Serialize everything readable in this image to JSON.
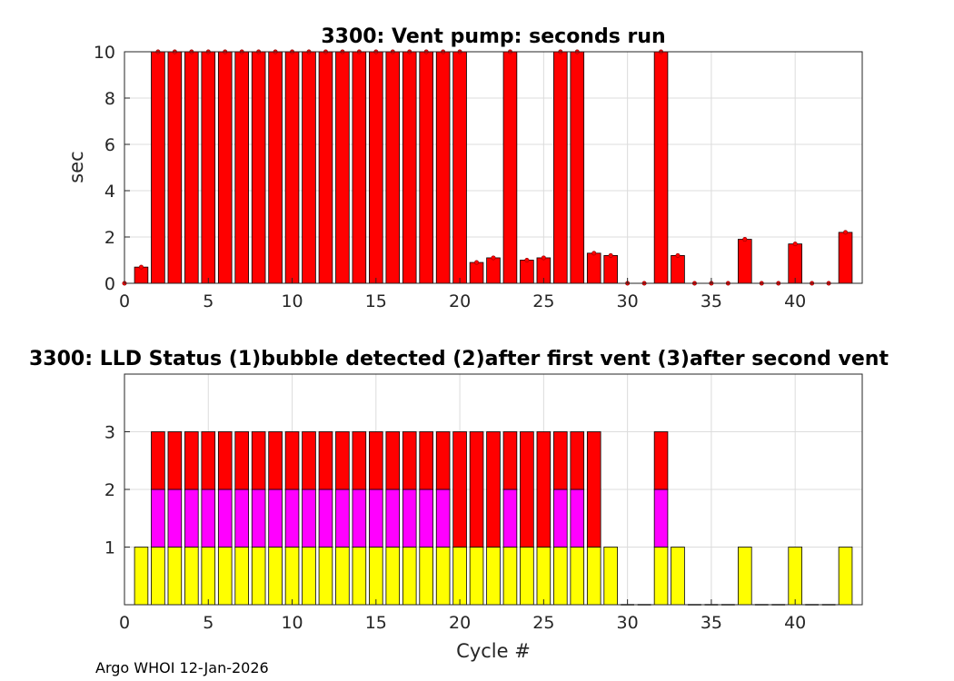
{
  "chart_data": [
    {
      "type": "bar",
      "title": "3300: Vent pump: seconds run",
      "xlabel": "",
      "ylabel": "sec",
      "xlim": [
        0,
        44
      ],
      "ylim": [
        0,
        10
      ],
      "xticks": [
        0,
        5,
        10,
        15,
        20,
        25,
        30,
        35,
        40
      ],
      "yticks": [
        0,
        2,
        4,
        6,
        8,
        10
      ],
      "grid": true,
      "bar_color": "#ff0000",
      "marker_color": "#ff0000",
      "x": [
        0,
        1,
        2,
        3,
        4,
        5,
        6,
        7,
        8,
        9,
        10,
        11,
        12,
        13,
        14,
        15,
        16,
        17,
        18,
        19,
        20,
        21,
        22,
        23,
        24,
        25,
        26,
        27,
        28,
        29,
        30,
        31,
        32,
        33,
        34,
        35,
        36,
        37,
        38,
        39,
        40,
        41,
        42,
        43
      ],
      "values": [
        0,
        0.7,
        10,
        10,
        10,
        10,
        10,
        10,
        10,
        10,
        10,
        10,
        10,
        10,
        10,
        10,
        10,
        10,
        10,
        10,
        10,
        0.9,
        1.1,
        10,
        1.0,
        1.1,
        10,
        10,
        1.3,
        1.2,
        0,
        0,
        10,
        1.2,
        0,
        0,
        0,
        1.9,
        0,
        0,
        1.7,
        0,
        0,
        2.2
      ]
    },
    {
      "type": "bar",
      "stacked": true,
      "title": "3300: LLD Status   (1)bubble detected   (2)after first vent  (3)after second vent",
      "xlabel": "Cycle #",
      "ylabel": "",
      "xlim": [
        0,
        44
      ],
      "ylim": [
        0,
        4
      ],
      "xticks": [
        0,
        5,
        10,
        15,
        20,
        25,
        30,
        35,
        40
      ],
      "yticks": [
        1,
        2,
        3
      ],
      "grid": true,
      "x": [
        1,
        2,
        3,
        4,
        5,
        6,
        7,
        8,
        9,
        10,
        11,
        12,
        13,
        14,
        15,
        16,
        17,
        18,
        19,
        20,
        21,
        22,
        23,
        24,
        25,
        26,
        27,
        28,
        29,
        30,
        31,
        32,
        33,
        34,
        35,
        36,
        37,
        38,
        39,
        40,
        41,
        42,
        43
      ],
      "status": [
        1,
        3,
        3,
        3,
        3,
        3,
        3,
        3,
        3,
        3,
        3,
        3,
        3,
        3,
        3,
        3,
        3,
        3,
        3,
        3,
        3,
        3,
        3,
        3,
        3,
        3,
        3,
        3,
        1,
        0,
        0,
        3,
        1,
        0,
        0,
        0,
        1,
        0,
        0,
        1,
        0,
        0,
        1
      ],
      "series": [
        {
          "name": "(1)bubble detected",
          "color": "#ffff00",
          "values": [
            1,
            1,
            1,
            1,
            1,
            1,
            1,
            1,
            1,
            1,
            1,
            1,
            1,
            1,
            1,
            1,
            1,
            1,
            1,
            1,
            1,
            1,
            1,
            1,
            1,
            1,
            1,
            1,
            1,
            0,
            0,
            1,
            1,
            0,
            0,
            0,
            1,
            0,
            0,
            1,
            0,
            0,
            1
          ]
        },
        {
          "name": "(2)after first vent",
          "color": "#ff00ff",
          "values": [
            0,
            1,
            1,
            1,
            1,
            1,
            1,
            1,
            1,
            1,
            1,
            1,
            1,
            1,
            1,
            1,
            1,
            1,
            1,
            0,
            0,
            0,
            1,
            0,
            0,
            1,
            1,
            0,
            0,
            0,
            0,
            1,
            0,
            0,
            0,
            0,
            0,
            0,
            0,
            0,
            0,
            0,
            0
          ]
        },
        {
          "name": "(3)after second vent",
          "color": "#ff0000",
          "values": [
            0,
            1,
            1,
            1,
            1,
            1,
            1,
            1,
            1,
            1,
            1,
            1,
            1,
            1,
            1,
            1,
            1,
            1,
            1,
            2,
            2,
            2,
            1,
            2,
            2,
            1,
            1,
            2,
            0,
            0,
            0,
            1,
            0,
            0,
            0,
            0,
            0,
            0,
            0,
            0,
            0,
            0,
            0
          ]
        }
      ]
    }
  ],
  "footer": {
    "credit": "Argo WHOI 12-Jan-2026"
  }
}
